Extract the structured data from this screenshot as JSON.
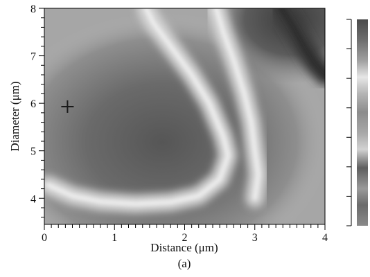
{
  "chart_data": {
    "type": "heatmap",
    "xlabel": "Distance (μm)",
    "ylabel": "Diameter (μm)",
    "caption": "(a)",
    "xlim": [
      0,
      4
    ],
    "ylim": [
      3.45,
      8
    ],
    "x_ticks": [
      0,
      1,
      2,
      3,
      4
    ],
    "y_ticks": [
      4,
      5,
      6,
      7,
      8
    ],
    "x_minor_step": 0.1,
    "y_minor_step": 0.2,
    "colorbar_ticks": 7,
    "colormap": "grayscale",
    "marker": {
      "symbol": "+",
      "x": 0.33,
      "y": 5.93
    },
    "contours": [
      {
        "level": "bright",
        "points": [
          [
            0.05,
            4.28
          ],
          [
            0.4,
            4.05
          ],
          [
            0.8,
            3.93
          ],
          [
            1.3,
            3.88
          ],
          [
            1.8,
            3.92
          ],
          [
            2.2,
            4.05
          ],
          [
            2.5,
            4.4
          ],
          [
            2.62,
            4.9
          ],
          [
            2.55,
            5.3
          ],
          [
            2.35,
            6.0
          ],
          [
            2.1,
            6.6
          ],
          [
            1.8,
            7.2
          ],
          [
            1.55,
            7.7
          ],
          [
            1.45,
            8.0
          ]
        ]
      },
      {
        "level": "bright",
        "points": [
          [
            3.0,
            4.0
          ],
          [
            3.05,
            4.5
          ],
          [
            3.0,
            5.0
          ],
          [
            2.95,
            5.6
          ],
          [
            2.85,
            6.2
          ],
          [
            2.7,
            6.9
          ],
          [
            2.55,
            7.5
          ],
          [
            2.45,
            8.0
          ]
        ]
      },
      {
        "level": "dark",
        "points": [
          [
            3.38,
            8.0
          ],
          [
            3.55,
            7.6
          ],
          [
            3.7,
            7.2
          ],
          [
            3.85,
            6.85
          ],
          [
            4.0,
            6.6
          ]
        ]
      }
    ],
    "colors": {
      "frame": "#000000",
      "cross": "#1a1a1a"
    }
  }
}
